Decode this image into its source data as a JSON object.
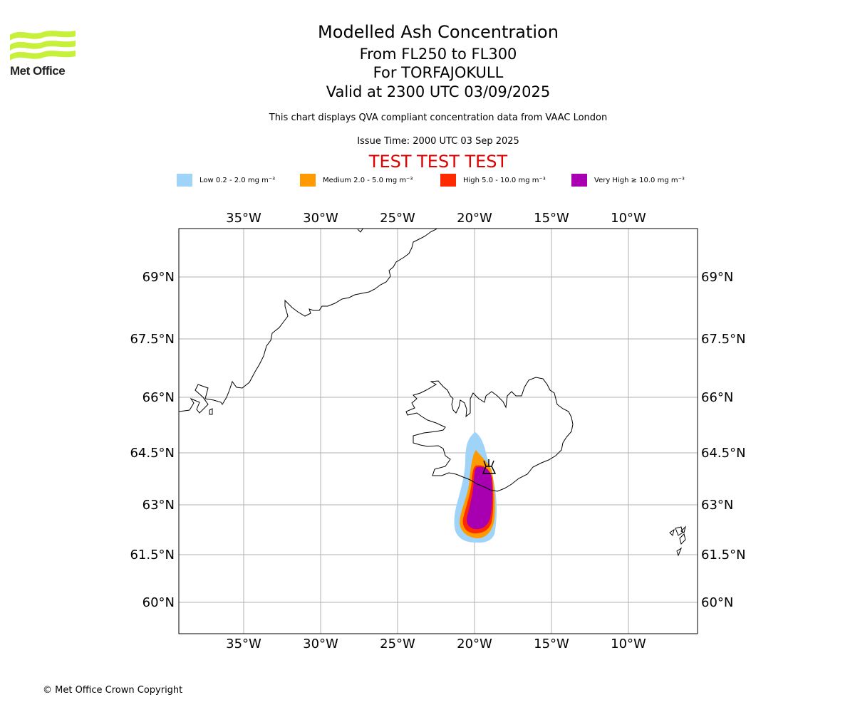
{
  "logo": {
    "text": "Met Office",
    "color": "#c7f03a"
  },
  "header": {
    "title": "Modelled Ash Concentration",
    "line1": "From FL250 to FL300",
    "line2": "For TORFAJOKULL",
    "line3": "Valid at 2300 UTC 03/09/2025",
    "description": "This chart displays QVA compliant concentration data from VAAC London",
    "issue_time": "Issue Time: 2000 UTC 03 Sep 2025",
    "test_banner": "TEST TEST TEST"
  },
  "legend": [
    {
      "label": "Low 0.2 - 2.0 mg m⁻³",
      "color": "#9fd3f8"
    },
    {
      "label": "Medium 2.0 - 5.0 mg m⁻³",
      "color": "#ff9a00"
    },
    {
      "label": "High 5.0 - 10.0 mg m⁻³",
      "color": "#ff2a00"
    },
    {
      "label": "Very High ≥ 10.0 mg m⁻³",
      "color": "#a800b0"
    }
  ],
  "map": {
    "lon_ticks": [
      "35°W",
      "30°W",
      "25°W",
      "20°W",
      "15°W",
      "10°W"
    ],
    "lat_ticks": [
      "69°N",
      "67.5°N",
      "66°N",
      "64.5°N",
      "63°N",
      "61.5°N",
      "60°N"
    ],
    "volcano": "TORFAJOKULL",
    "colors": {
      "grid": "#b0b0b0",
      "coast": "#000000",
      "frame": "#000000"
    }
  },
  "footer": {
    "copyright": "© Met Office Crown Copyright"
  }
}
